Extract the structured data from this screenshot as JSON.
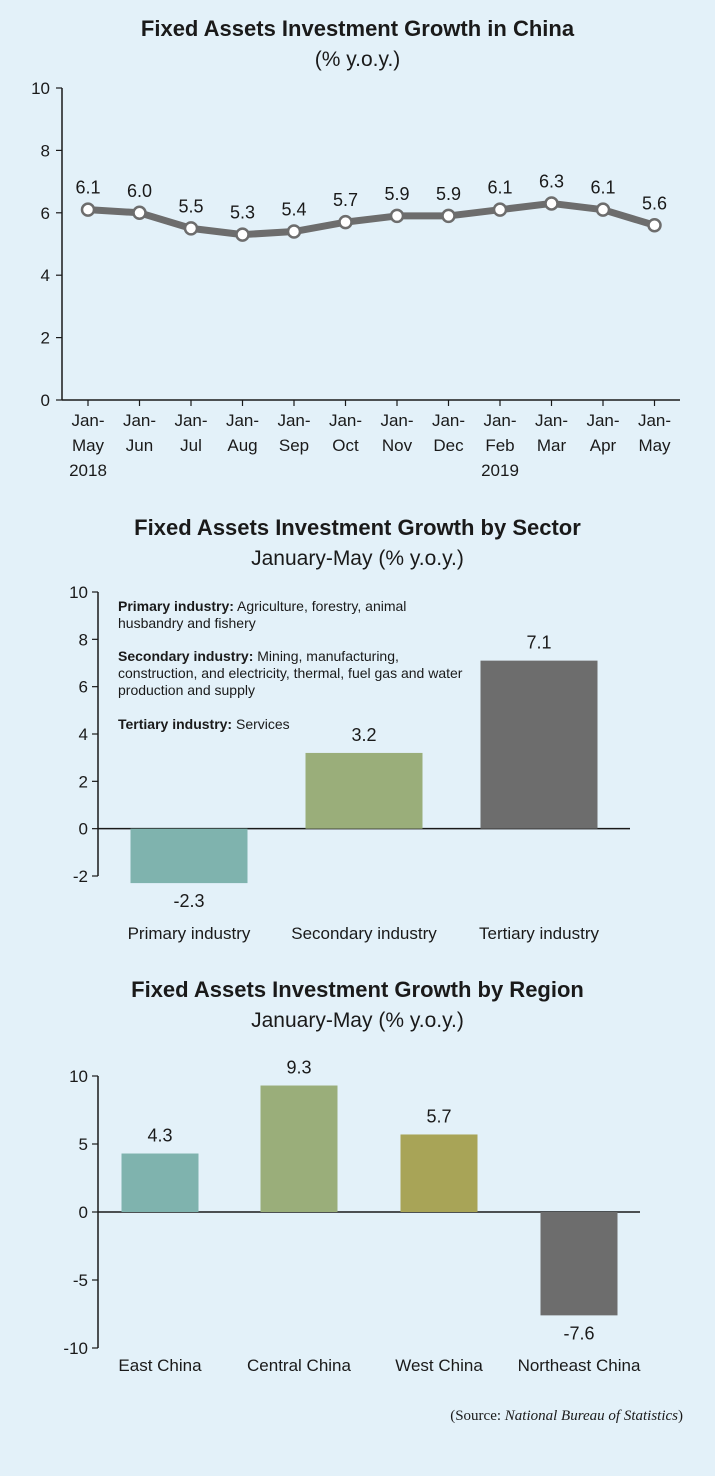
{
  "chart_data": [
    {
      "type": "line",
      "title": "Fixed Assets Investment Growth in China",
      "subtitle": "(% y.o.y.)",
      "categories": [
        [
          "Jan-",
          "May",
          "2018"
        ],
        [
          "Jan-",
          "Jun"
        ],
        [
          "Jan-",
          "Jul"
        ],
        [
          "Jan-",
          "Aug"
        ],
        [
          "Jan-",
          "Sep"
        ],
        [
          "Jan-",
          "Oct"
        ],
        [
          "Jan-",
          "Nov"
        ],
        [
          "Jan-",
          "Dec"
        ],
        [
          "Jan-",
          "Feb",
          "2019"
        ],
        [
          "Jan-",
          "Mar"
        ],
        [
          "Jan-",
          "Apr"
        ],
        [
          "Jan-",
          "May"
        ]
      ],
      "values": [
        6.1,
        6.0,
        5.5,
        5.3,
        5.4,
        5.7,
        5.9,
        5.9,
        6.1,
        6.3,
        6.1,
        5.6
      ],
      "value_labels": [
        "6.1",
        "6.0",
        "5.5",
        "5.3",
        "5.4",
        "5.7",
        "5.9",
        "5.9",
        "6.1",
        "6.3",
        "6.1",
        "5.6"
      ],
      "ylim": [
        0,
        10
      ],
      "yticks": [
        "0",
        "2",
        "4",
        "6",
        "8",
        "10"
      ],
      "line_color": "#6d6d6d",
      "grid": false
    },
    {
      "type": "bar",
      "title": "Fixed Assets Investment Growth by Sector",
      "subtitle": "January-May (% y.o.y.)",
      "categories": [
        "Primary industry",
        "Secondary industry",
        "Tertiary industry"
      ],
      "values": [
        -2.3,
        3.2,
        7.1
      ],
      "value_labels": [
        "-2.3",
        "3.2",
        "7.1"
      ],
      "colors": [
        "#7fb3ae",
        "#9aae7a",
        "#6d6d6d"
      ],
      "ylim": [
        -2,
        10
      ],
      "yticks": [
        "-2",
        "0",
        "2",
        "4",
        "6",
        "8",
        "10"
      ],
      "grid": false,
      "notes": [
        {
          "term": "Primary industry:",
          "text": " Agriculture, forestry, animal husbandry and fishery"
        },
        {
          "term": "Secondary industry:",
          "text": " Mining, manufacturing, construction, and electricity, thermal, fuel gas and water production and supply"
        },
        {
          "term": "Tertiary industry:",
          "text": " Services"
        }
      ]
    },
    {
      "type": "bar",
      "title": "Fixed Assets Investment Growth by Region",
      "subtitle": "January-May (% y.o.y.)",
      "categories": [
        "East China",
        "Central China",
        "West China",
        "Northeast China"
      ],
      "values": [
        4.3,
        9.3,
        5.7,
        -7.6
      ],
      "value_labels": [
        "4.3",
        "9.3",
        "5.7",
        "-7.6"
      ],
      "colors": [
        "#7fb3ae",
        "#9aae7a",
        "#a8a457",
        "#6d6d6d"
      ],
      "ylim": [
        -10,
        10
      ],
      "yticks": [
        "-10",
        "-5",
        "0",
        "5",
        "10"
      ],
      "grid": false
    }
  ],
  "source": {
    "prefix": "(Source: ",
    "name": "National Bureau of Statistics",
    "suffix": ")"
  }
}
